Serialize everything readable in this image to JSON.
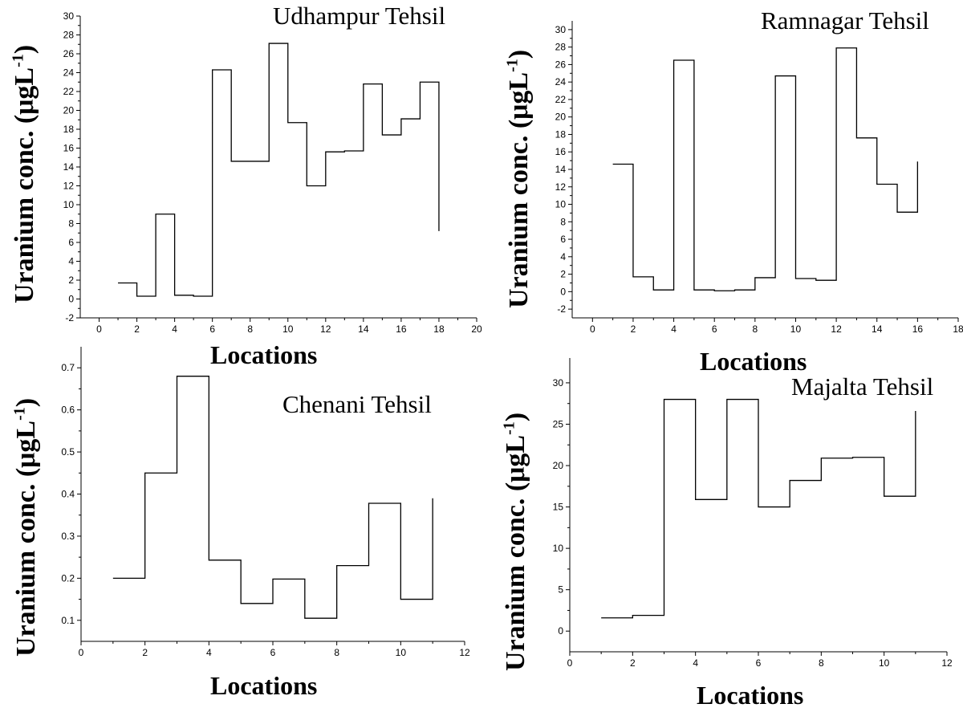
{
  "ylabel_text": "Uranium conc. (μgL",
  "ylabel_sup": "-1",
  "ylabel_close": ")",
  "chart_data": [
    {
      "type": "line",
      "step": true,
      "title": "Udhampur Tehsil",
      "xlabel": "Locations",
      "xlim": [
        -1,
        20
      ],
      "ylim": [
        -2,
        30
      ],
      "xticks": [
        0,
        2,
        4,
        6,
        8,
        10,
        12,
        14,
        16,
        18,
        20
      ],
      "yticks": [
        -2,
        0,
        2,
        4,
        6,
        8,
        10,
        12,
        14,
        16,
        18,
        20,
        22,
        24,
        26,
        28,
        30
      ],
      "x": [
        1,
        2,
        3,
        4,
        5,
        6,
        7,
        8,
        9,
        10,
        11,
        12,
        13,
        14,
        15,
        16,
        17,
        18
      ],
      "values": [
        1.7,
        0.3,
        9.0,
        0.4,
        0.3,
        24.3,
        14.6,
        14.6,
        27.1,
        18.7,
        12.0,
        15.6,
        15.7,
        22.8,
        17.4,
        19.1,
        23.0,
        7.2
      ]
    },
    {
      "type": "line",
      "step": true,
      "title": "Ramnagar Tehsil",
      "xlabel": "Locations",
      "xlim": [
        -1,
        18
      ],
      "ylim": [
        -3,
        31
      ],
      "xticks": [
        0,
        2,
        4,
        6,
        8,
        10,
        12,
        14,
        16,
        18
      ],
      "yticks": [
        -2,
        0,
        2,
        4,
        6,
        8,
        10,
        12,
        14,
        16,
        18,
        20,
        22,
        24,
        26,
        28,
        30
      ],
      "x": [
        1,
        2,
        3,
        4,
        5,
        6,
        7,
        8,
        9,
        10,
        11,
        12,
        13,
        14,
        15,
        16
      ],
      "values": [
        14.6,
        1.7,
        0.2,
        26.5,
        0.2,
        0.1,
        0.2,
        1.6,
        24.7,
        1.5,
        1.3,
        27.9,
        17.6,
        12.3,
        9.1,
        14.9
      ]
    },
    {
      "type": "line",
      "step": true,
      "title": "Chenani Tehsil",
      "xlabel": "Locations",
      "xlim": [
        0,
        12
      ],
      "ylim": [
        0.05,
        0.75
      ],
      "xticks": [
        0,
        2,
        4,
        6,
        8,
        10,
        12
      ],
      "yticks": [
        0.1,
        0.2,
        0.3,
        0.4,
        0.5,
        0.6,
        0.7
      ],
      "x": [
        1,
        2,
        3,
        4,
        5,
        6,
        7,
        8,
        9,
        10,
        11
      ],
      "values": [
        0.2,
        0.45,
        0.68,
        0.243,
        0.14,
        0.198,
        0.105,
        0.23,
        0.378,
        0.15,
        0.39
      ]
    },
    {
      "type": "line",
      "step": true,
      "title": "Majalta Tehsil",
      "xlabel": "Locations",
      "xlim": [
        0,
        12
      ],
      "ylim": [
        -2.5,
        33
      ],
      "xticks": [
        0,
        2,
        4,
        6,
        8,
        10,
        12
      ],
      "yticks": [
        0,
        5,
        10,
        15,
        20,
        25,
        30
      ],
      "x": [
        1,
        2,
        3,
        4,
        5,
        6,
        7,
        8,
        9,
        10,
        11
      ],
      "values": [
        1.6,
        1.9,
        28.0,
        15.9,
        28.0,
        15.0,
        18.2,
        20.9,
        21.0,
        16.3,
        26.6
      ]
    }
  ]
}
